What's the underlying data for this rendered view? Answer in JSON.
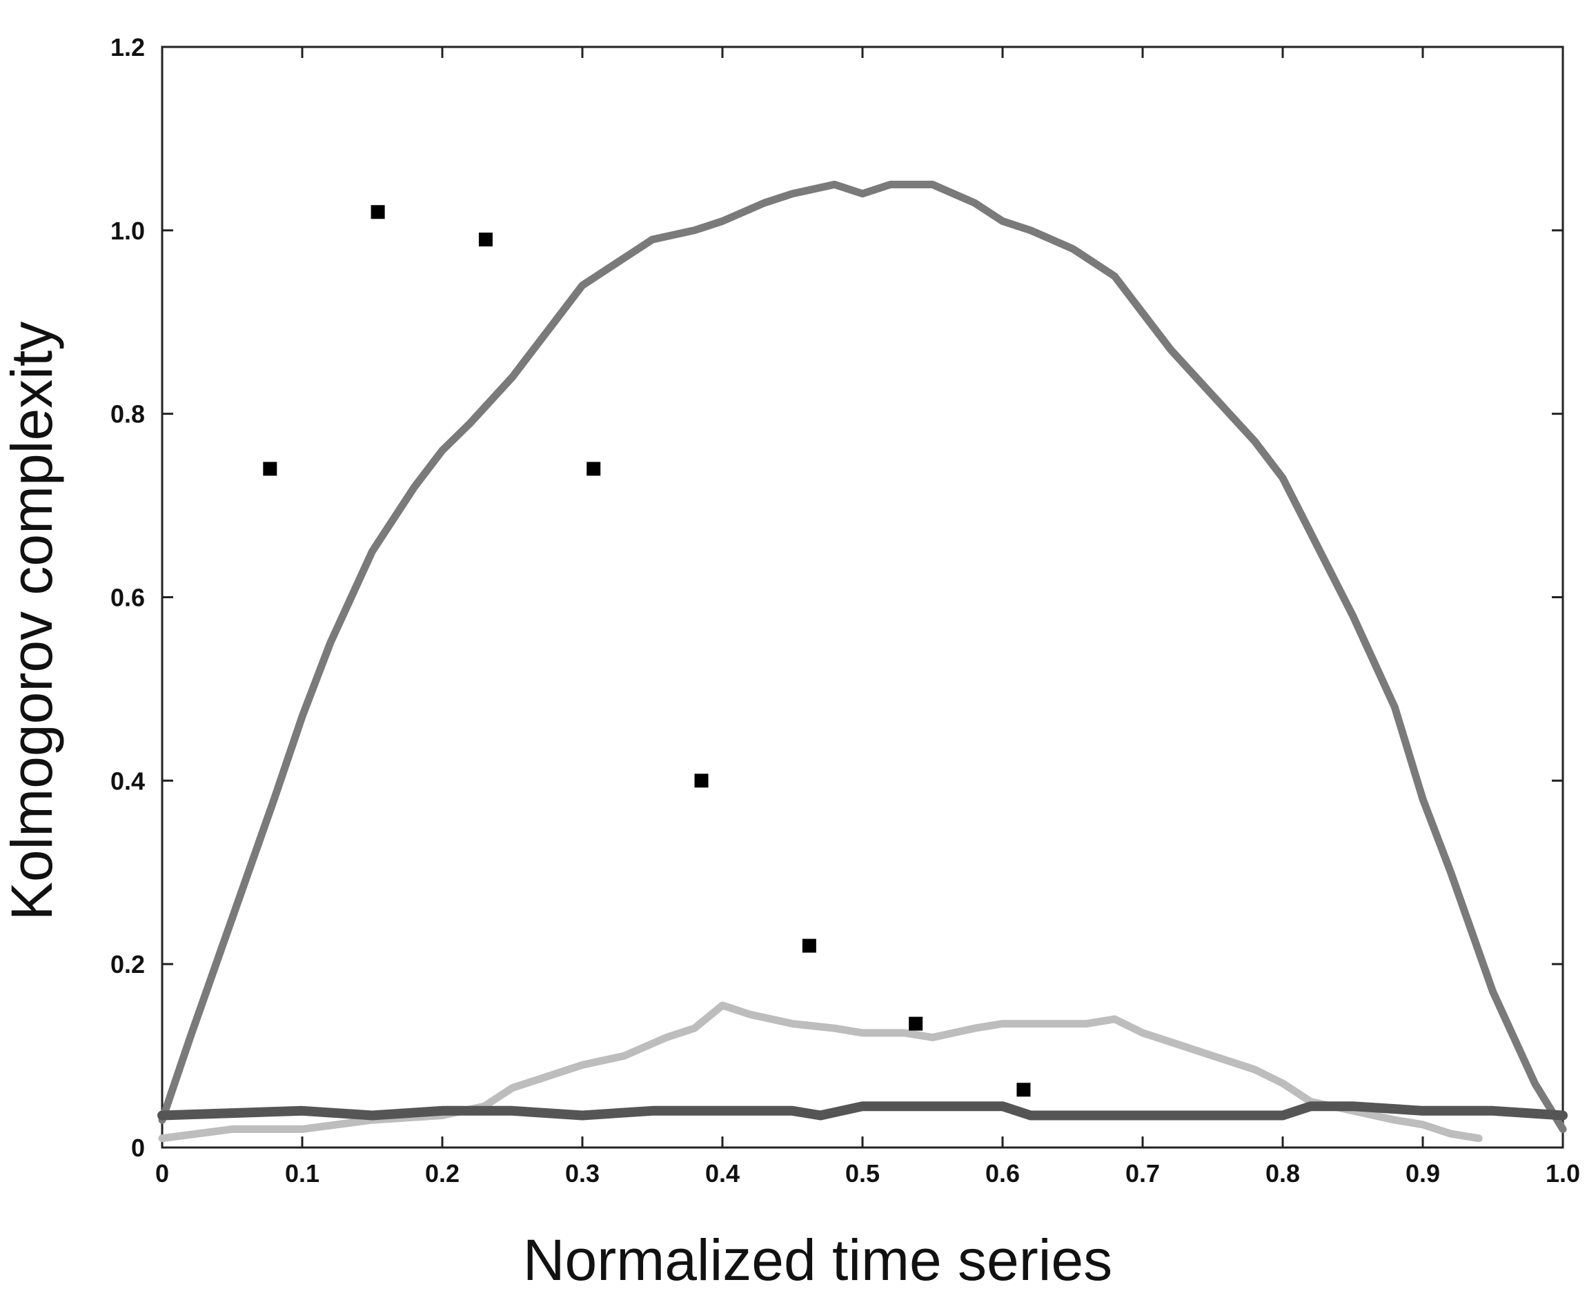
{
  "chart_data": {
    "type": "line",
    "xlabel": "Normalized time series",
    "ylabel": "Kolmogorov complexity",
    "xlim": [
      0,
      1.0
    ],
    "ylim": [
      0,
      1.2
    ],
    "x_ticks": [
      0,
      0.1,
      0.2,
      0.3,
      0.4,
      0.5,
      0.6,
      0.7,
      0.8,
      0.9,
      1.0
    ],
    "x_tick_labels": [
      "0",
      "0.1",
      "0.2",
      "0.3",
      "0.4",
      "0.5",
      "0.6",
      "0.7",
      "0.8",
      "0.9",
      "1.0"
    ],
    "y_ticks": [
      0,
      0.2,
      0.4,
      0.6,
      0.8,
      1.0,
      1.2
    ],
    "y_tick_labels": [
      "0",
      "0.2",
      "0.4",
      "0.6",
      "0.8",
      "1.0",
      "1.2"
    ],
    "grid": false,
    "series": [
      {
        "kind": "line",
        "color": "#7a7a7a",
        "x": [
          0,
          0.02,
          0.05,
          0.08,
          0.1,
          0.12,
          0.15,
          0.18,
          0.2,
          0.22,
          0.25,
          0.28,
          0.3,
          0.33,
          0.35,
          0.38,
          0.4,
          0.43,
          0.45,
          0.48,
          0.5,
          0.52,
          0.55,
          0.58,
          0.6,
          0.62,
          0.65,
          0.68,
          0.7,
          0.72,
          0.75,
          0.78,
          0.8,
          0.82,
          0.85,
          0.88,
          0.9,
          0.92,
          0.95,
          0.98,
          1.0
        ],
        "y": [
          0.03,
          0.12,
          0.25,
          0.38,
          0.47,
          0.55,
          0.65,
          0.72,
          0.76,
          0.79,
          0.84,
          0.9,
          0.94,
          0.97,
          0.99,
          1.0,
          1.01,
          1.03,
          1.04,
          1.05,
          1.04,
          1.05,
          1.05,
          1.03,
          1.01,
          1.0,
          0.98,
          0.95,
          0.91,
          0.87,
          0.82,
          0.77,
          0.73,
          0.67,
          0.58,
          0.48,
          0.38,
          0.3,
          0.17,
          0.07,
          0.02
        ]
      },
      {
        "kind": "line",
        "color": "#bdbdbd",
        "x": [
          0.0,
          0.05,
          0.1,
          0.15,
          0.2,
          0.23,
          0.25,
          0.28,
          0.3,
          0.33,
          0.36,
          0.38,
          0.4,
          0.42,
          0.45,
          0.48,
          0.5,
          0.53,
          0.55,
          0.58,
          0.6,
          0.63,
          0.66,
          0.68,
          0.7,
          0.72,
          0.75,
          0.78,
          0.8,
          0.82,
          0.85,
          0.88,
          0.9,
          0.92,
          0.94
        ],
        "y": [
          0.01,
          0.02,
          0.02,
          0.03,
          0.035,
          0.045,
          0.065,
          0.08,
          0.09,
          0.1,
          0.12,
          0.13,
          0.155,
          0.145,
          0.135,
          0.13,
          0.125,
          0.125,
          0.12,
          0.13,
          0.135,
          0.135,
          0.135,
          0.14,
          0.125,
          0.115,
          0.1,
          0.085,
          0.07,
          0.05,
          0.04,
          0.03,
          0.025,
          0.015,
          0.01
        ]
      },
      {
        "kind": "line",
        "color": "#555555",
        "x": [
          0,
          0.1,
          0.15,
          0.2,
          0.25,
          0.3,
          0.35,
          0.4,
          0.45,
          0.47,
          0.5,
          0.55,
          0.6,
          0.62,
          0.65,
          0.7,
          0.75,
          0.8,
          0.82,
          0.85,
          0.9,
          0.95,
          1.0
        ],
        "y": [
          0.035,
          0.04,
          0.035,
          0.04,
          0.04,
          0.035,
          0.04,
          0.04,
          0.04,
          0.035,
          0.045,
          0.045,
          0.045,
          0.035,
          0.035,
          0.035,
          0.035,
          0.035,
          0.045,
          0.045,
          0.04,
          0.04,
          0.035
        ]
      },
      {
        "kind": "scatter",
        "color": "#000000",
        "x": [
          0.077,
          0.154,
          0.231,
          0.308,
          0.385,
          0.462,
          0.538,
          0.615
        ],
        "y": [
          0.74,
          1.02,
          0.99,
          0.74,
          0.4,
          0.22,
          0.135,
          0.063
        ]
      }
    ]
  }
}
